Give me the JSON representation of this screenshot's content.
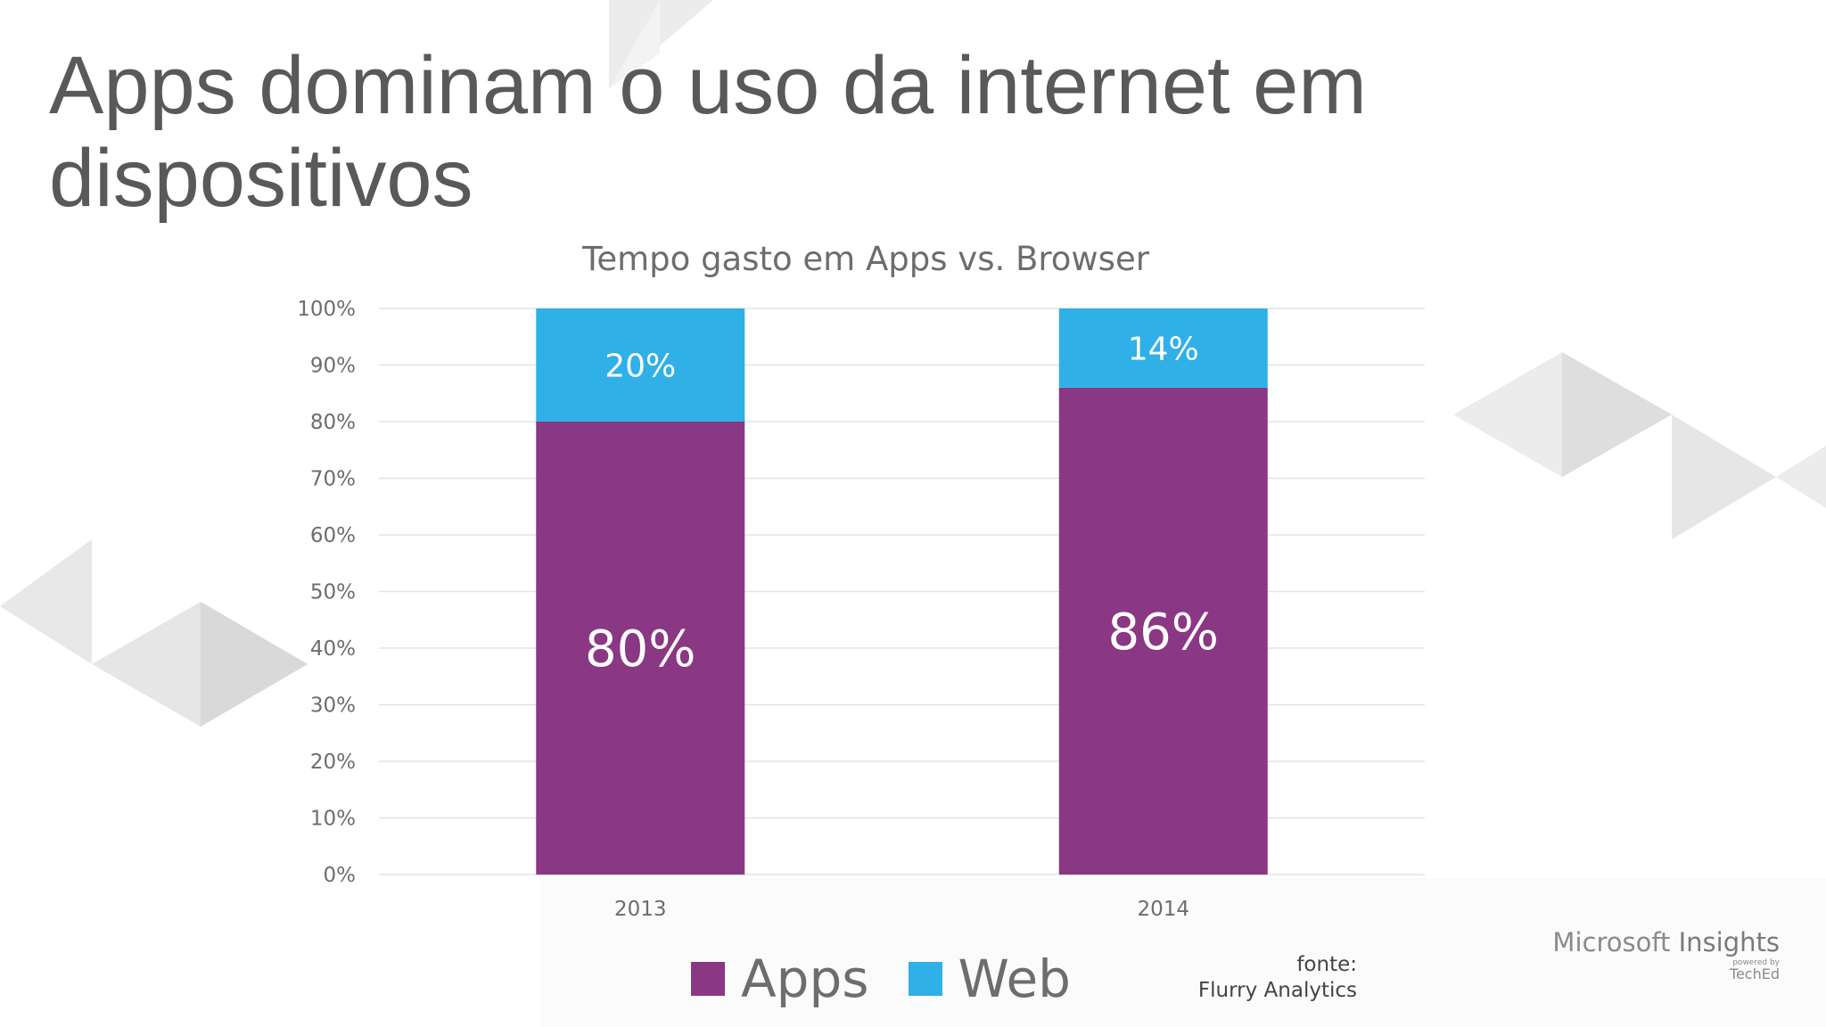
{
  "slide": {
    "title": "Apps dominam o uso da internet em dispositivos"
  },
  "chart_data": {
    "type": "bar",
    "stacked": true,
    "title": "Tempo gasto em Apps vs. Browser",
    "categories": [
      "2013",
      "2014"
    ],
    "series": [
      {
        "name": "Apps",
        "values": [
          80,
          86
        ],
        "labels": [
          "80%",
          "86%"
        ],
        "color": "#8a3784"
      },
      {
        "name": "Web",
        "values": [
          20,
          14
        ],
        "labels": [
          "20%",
          "14%"
        ],
        "color": "#2fb0e7"
      }
    ],
    "ylim": [
      0,
      100
    ],
    "yticks": [
      "0%",
      "10%",
      "20%",
      "30%",
      "40%",
      "50%",
      "60%",
      "70%",
      "80%",
      "90%",
      "100%"
    ],
    "grid": true,
    "legend_position": "bottom"
  },
  "legend": [
    {
      "label": "Apps",
      "color": "#8a3784"
    },
    {
      "label": "Web",
      "color": "#2fb0e7"
    }
  ],
  "source": {
    "line1": "fonte:",
    "line2": "Flurry Analytics"
  },
  "brand": {
    "name_light": "Microsoft ",
    "name_bold": "Insights",
    "powered_by": "powered by",
    "teched": "TechEd"
  },
  "colors": {
    "title_text": "#595959",
    "decoration": "#e6e6e6",
    "gridline": "#e3e3e3",
    "axis_text": "#6d6d6d"
  }
}
